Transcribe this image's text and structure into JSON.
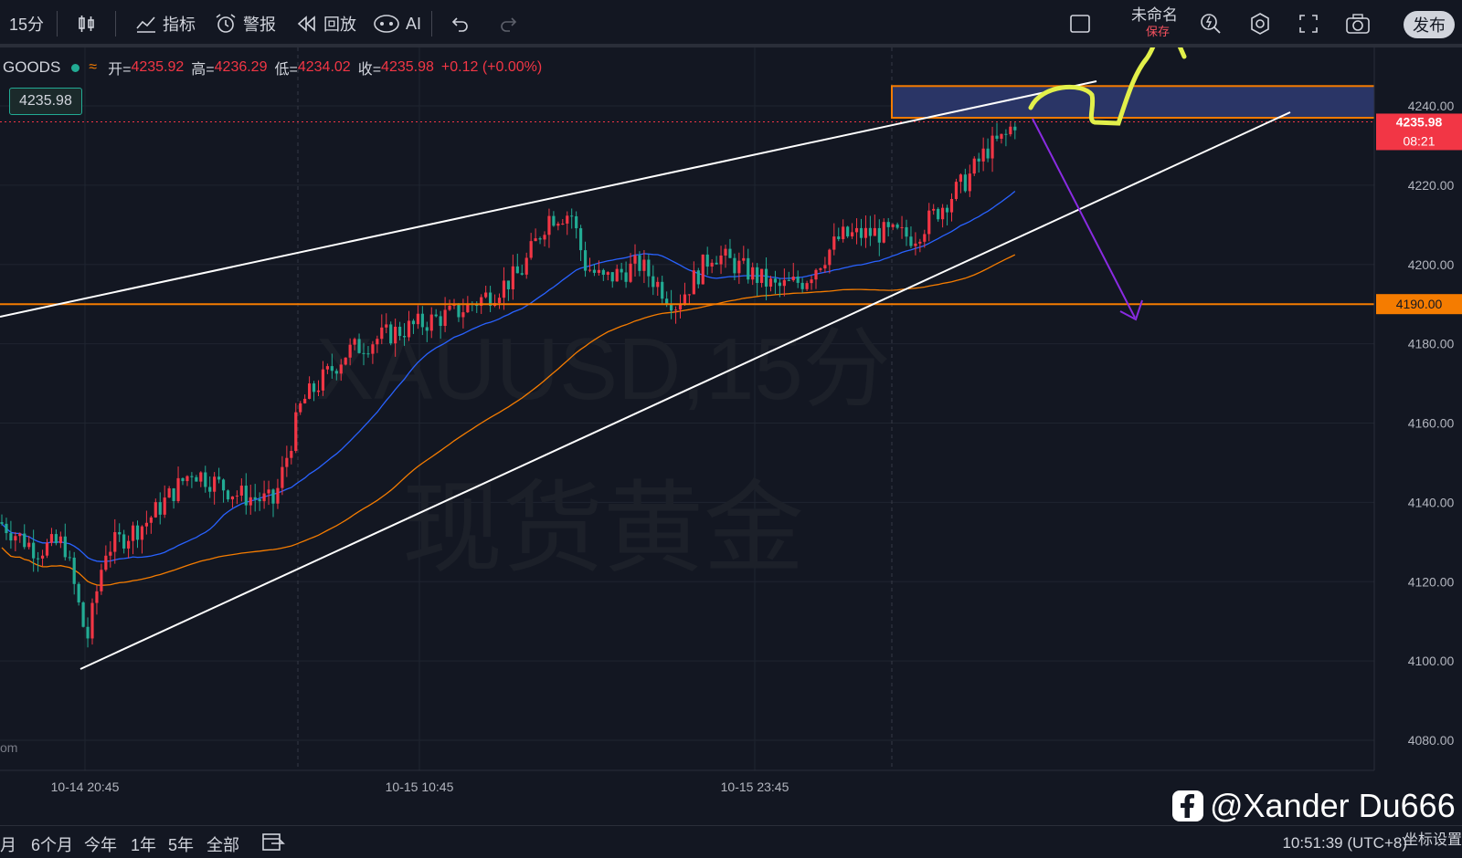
{
  "toolbar": {
    "interval": "15分",
    "indicators_label": "指标",
    "alerts_label": "警报",
    "replay_label": "回放",
    "ai_label": "AI",
    "layout_name": "未命名",
    "layout_sub": "保存",
    "publish_label": "发布"
  },
  "legend": {
    "symbol": "GOODS",
    "approx": "≈",
    "open_label": "开=",
    "open": "4235.92",
    "high_label": "高=",
    "high": "4236.29",
    "low_label": "低=",
    "low": "4234.02",
    "close_label": "收=",
    "close": "4235.98",
    "change": "+0.12 (+0.00%)"
  },
  "price_box": "4235.98",
  "watermark": {
    "line1": "XAUUSD,15分",
    "line2": "现货黄金"
  },
  "chart_data": {
    "type": "candlestick",
    "symbol": "XAUUSD",
    "ylim": [
      4070,
      4255
    ],
    "y_ticks": [
      "4240.00",
      "4220.00",
      "4200.00",
      "4180.00",
      "4160.00",
      "4140.00",
      "4120.00",
      "4100.00",
      "4080.00"
    ],
    "x_ticks": [
      "10-14 20:45",
      "10-15 10:45",
      "10-15 23:45"
    ],
    "last_price_label": "4235.98",
    "countdown_label": "08:21",
    "level_label": "4190.00",
    "level_price": 4190,
    "zone": [
      4237,
      4245
    ],
    "left_edge_label": "om",
    "colors": {
      "up": "#f23645",
      "down": "#22ab94",
      "ma_fast": "#2962ff",
      "ma_slow": "#f57c00",
      "level": "#f57c00",
      "arrow": "#8a2be2",
      "marker": "#e2f04a"
    }
  },
  "bottom": {
    "ranges": [
      "月",
      "6个月",
      "今年",
      "1年",
      "5年",
      "全部"
    ],
    "clock": "10:51:39 (UTC+8)",
    "axis_settings": "坐标设置",
    "credit": "@Xander Du666"
  }
}
